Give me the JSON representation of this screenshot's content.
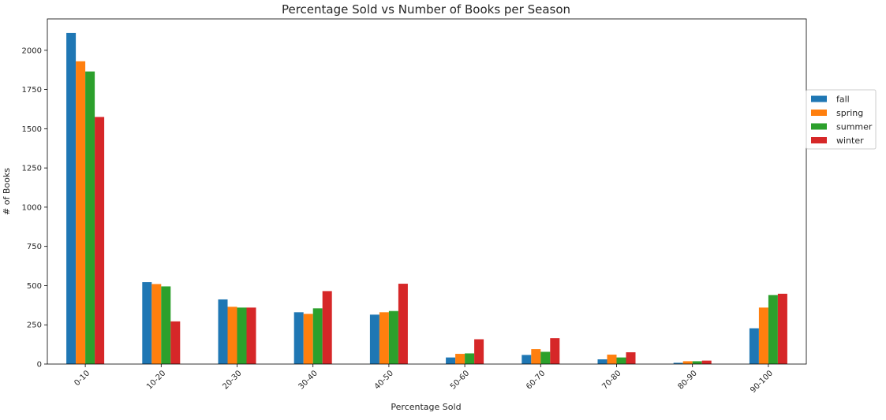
{
  "chart_data": {
    "type": "bar",
    "title": "Percentage Sold vs Number of Books per Season",
    "xlabel": "Percentage Sold",
    "ylabel": "# of Books",
    "categories": [
      "0-10",
      "10-20",
      "20-30",
      "30-40",
      "40-50",
      "50-60",
      "60-70",
      "70-80",
      "80-90",
      "90-100"
    ],
    "ylim": [
      0,
      2200
    ],
    "yticks": [
      0,
      250,
      500,
      750,
      1000,
      1250,
      1500,
      1750,
      2000
    ],
    "grid": false,
    "legend_position": "right",
    "series": [
      {
        "name": "fall",
        "color": "#1f77b4",
        "values": [
          2110,
          522,
          412,
          330,
          315,
          42,
          58,
          30,
          8,
          228
        ]
      },
      {
        "name": "spring",
        "color": "#ff7f0e",
        "values": [
          1930,
          510,
          365,
          320,
          330,
          65,
          95,
          60,
          18,
          360
        ]
      },
      {
        "name": "summer",
        "color": "#2ca02c",
        "values": [
          1865,
          495,
          360,
          355,
          338,
          68,
          78,
          42,
          18,
          440
        ]
      },
      {
        "name": "winter",
        "color": "#d62728",
        "values": [
          1575,
          272,
          360,
          465,
          512,
          158,
          165,
          75,
          22,
          448
        ]
      }
    ]
  }
}
